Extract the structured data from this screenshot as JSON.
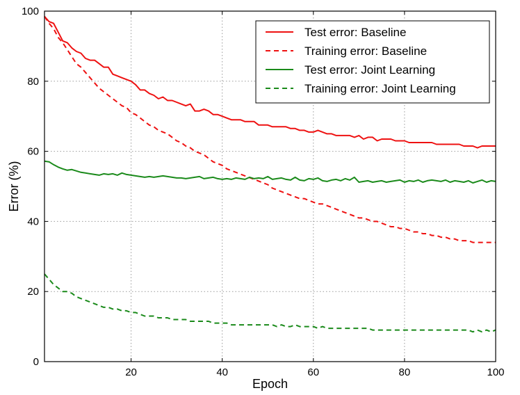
{
  "chart_data": {
    "type": "line",
    "title": "",
    "xlabel": "Epoch",
    "ylabel": "Error (%)",
    "xlim": [
      1,
      100
    ],
    "ylim": [
      0,
      100
    ],
    "xticks": [
      20,
      40,
      60,
      80,
      100
    ],
    "yticks": [
      0,
      20,
      40,
      60,
      80,
      100
    ],
    "grid": true,
    "legend_position": "top-right",
    "x": [
      1,
      2,
      3,
      4,
      5,
      6,
      7,
      8,
      9,
      10,
      11,
      12,
      13,
      14,
      15,
      16,
      17,
      18,
      19,
      20,
      21,
      22,
      23,
      24,
      25,
      26,
      27,
      28,
      29,
      30,
      31,
      32,
      33,
      34,
      35,
      36,
      37,
      38,
      39,
      40,
      41,
      42,
      43,
      44,
      45,
      46,
      47,
      48,
      49,
      50,
      51,
      52,
      53,
      54,
      55,
      56,
      57,
      58,
      59,
      60,
      61,
      62,
      63,
      64,
      65,
      66,
      67,
      68,
      69,
      70,
      71,
      72,
      73,
      74,
      75,
      76,
      77,
      78,
      79,
      80,
      81,
      82,
      83,
      84,
      85,
      86,
      87,
      88,
      89,
      90,
      91,
      92,
      93,
      94,
      95,
      96,
      97,
      98,
      99,
      100
    ],
    "series": [
      {
        "name": "Test error: Baseline",
        "color": "#ee1111",
        "dash": "solid",
        "values": [
          98.5,
          97.0,
          96.5,
          94.0,
          91.5,
          91.0,
          89.5,
          88.5,
          88.0,
          86.5,
          86.0,
          86.0,
          85.0,
          84.0,
          84.0,
          82.0,
          81.5,
          81.0,
          80.5,
          80.0,
          79.0,
          77.5,
          77.5,
          76.5,
          76.0,
          75.0,
          75.5,
          74.5,
          74.5,
          74.0,
          73.5,
          73.0,
          73.5,
          71.5,
          71.5,
          72.0,
          71.5,
          70.5,
          70.5,
          70.0,
          69.5,
          69.0,
          69.0,
          69.0,
          68.5,
          68.5,
          68.5,
          67.5,
          67.5,
          67.5,
          67.0,
          67.0,
          67.0,
          67.0,
          66.5,
          66.5,
          66.0,
          66.0,
          65.5,
          65.5,
          66.0,
          65.5,
          65.0,
          65.0,
          64.5,
          64.5,
          64.5,
          64.5,
          64.0,
          64.5,
          63.5,
          64.0,
          64.0,
          63.0,
          63.5,
          63.5,
          63.5,
          63.0,
          63.0,
          63.0,
          62.5,
          62.5,
          62.5,
          62.5,
          62.5,
          62.5,
          62.0,
          62.0,
          62.0,
          62.0,
          62.0,
          62.0,
          61.5,
          61.5,
          61.5,
          61.0,
          61.5,
          61.5,
          61.5,
          61.5
        ]
      },
      {
        "name": "Training error: Baseline",
        "color": "#ee1111",
        "dash": "dashed",
        "values": [
          98.5,
          96.5,
          95.0,
          92.5,
          91.0,
          89.0,
          87.0,
          85.0,
          84.0,
          82.5,
          81.0,
          79.5,
          78.0,
          77.0,
          76.0,
          75.0,
          74.0,
          73.0,
          72.5,
          71.0,
          70.5,
          69.5,
          68.5,
          67.5,
          67.0,
          66.0,
          65.5,
          65.0,
          64.0,
          63.0,
          62.5,
          61.5,
          61.0,
          60.0,
          59.5,
          59.0,
          58.0,
          57.0,
          56.5,
          56.0,
          55.0,
          54.5,
          54.0,
          53.5,
          53.0,
          52.5,
          52.0,
          51.5,
          51.0,
          50.5,
          49.5,
          49.0,
          48.5,
          48.0,
          47.5,
          47.0,
          46.5,
          46.5,
          46.0,
          45.5,
          45.0,
          45.0,
          44.5,
          44.0,
          43.5,
          43.0,
          42.5,
          42.0,
          41.5,
          41.0,
          41.0,
          40.5,
          40.0,
          40.0,
          39.5,
          39.0,
          38.5,
          38.5,
          38.0,
          38.0,
          37.5,
          37.0,
          37.0,
          36.5,
          36.5,
          36.0,
          36.0,
          35.5,
          35.5,
          35.0,
          35.0,
          34.5,
          34.5,
          34.5,
          34.0,
          34.0,
          34.0,
          34.0,
          34.0,
          34.0
        ]
      },
      {
        "name": "Test error: Joint Learning",
        "color": "#1a8a1a",
        "dash": "solid",
        "values": [
          57.2,
          57.0,
          56.2,
          55.5,
          55.0,
          54.6,
          54.8,
          54.4,
          54.0,
          53.8,
          53.6,
          53.4,
          53.2,
          53.6,
          53.4,
          53.6,
          53.2,
          53.8,
          53.4,
          53.2,
          53.0,
          52.8,
          52.6,
          52.8,
          52.6,
          52.8,
          53.0,
          52.8,
          52.6,
          52.4,
          52.4,
          52.2,
          52.4,
          52.6,
          52.8,
          52.2,
          52.4,
          52.6,
          52.2,
          52.0,
          52.2,
          52.0,
          52.4,
          52.2,
          52.0,
          52.6,
          52.2,
          52.4,
          52.2,
          52.8,
          52.0,
          52.2,
          52.4,
          52.0,
          51.8,
          52.6,
          51.8,
          51.6,
          52.2,
          52.0,
          52.4,
          51.6,
          51.4,
          51.8,
          52.0,
          51.6,
          52.2,
          51.8,
          52.6,
          51.2,
          51.4,
          51.6,
          51.2,
          51.4,
          51.6,
          51.2,
          51.4,
          51.6,
          51.8,
          51.2,
          51.6,
          51.4,
          51.8,
          51.2,
          51.6,
          51.8,
          51.6,
          51.4,
          51.8,
          51.2,
          51.6,
          51.4,
          51.2,
          51.6,
          51.0,
          51.4,
          51.8,
          51.2,
          51.6,
          51.4
        ]
      },
      {
        "name": "Training error: Joint Learning",
        "color": "#1a8a1a",
        "dash": "dashed",
        "values": [
          25.0,
          23.5,
          22.0,
          21.0,
          20.0,
          20.0,
          19.5,
          18.5,
          18.0,
          17.5,
          17.0,
          16.5,
          16.0,
          15.5,
          15.5,
          15.0,
          15.0,
          14.5,
          14.5,
          14.0,
          14.0,
          13.5,
          13.0,
          13.0,
          13.0,
          12.5,
          12.5,
          12.5,
          12.0,
          12.0,
          12.0,
          12.0,
          11.5,
          11.5,
          11.5,
          11.5,
          11.5,
          11.0,
          11.0,
          11.0,
          11.0,
          10.5,
          10.5,
          10.5,
          10.5,
          10.5,
          10.5,
          10.5,
          10.5,
          10.5,
          10.5,
          10.0,
          10.5,
          10.0,
          10.0,
          10.5,
          10.0,
          10.0,
          10.0,
          10.0,
          9.5,
          10.0,
          9.5,
          9.5,
          9.5,
          9.5,
          9.5,
          9.5,
          9.5,
          9.5,
          9.5,
          9.5,
          9.0,
          9.0,
          9.0,
          9.0,
          9.0,
          9.0,
          9.0,
          9.0,
          9.0,
          9.0,
          9.0,
          9.0,
          9.0,
          9.0,
          9.0,
          9.0,
          9.0,
          9.0,
          9.0,
          9.0,
          9.0,
          9.0,
          8.5,
          9.0,
          8.5,
          9.0,
          8.5,
          9.0
        ]
      }
    ]
  }
}
